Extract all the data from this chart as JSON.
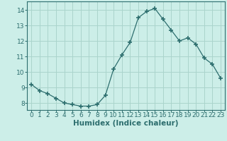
{
  "x": [
    0,
    1,
    2,
    3,
    4,
    5,
    6,
    7,
    8,
    9,
    10,
    11,
    12,
    13,
    14,
    15,
    16,
    17,
    18,
    19,
    20,
    21,
    22,
    23
  ],
  "y": [
    9.2,
    8.8,
    8.6,
    8.3,
    8.0,
    7.9,
    7.8,
    7.8,
    7.9,
    8.5,
    10.2,
    11.1,
    11.9,
    13.5,
    13.9,
    14.1,
    13.4,
    12.7,
    12.0,
    12.2,
    11.8,
    10.9,
    10.5,
    9.6
  ],
  "line_color": "#2d6e6e",
  "marker": "D",
  "marker_size": 2.5,
  "bg_color": "#cceee8",
  "grid_color": "#aad4cc",
  "xlabel": "Humidex (Indice chaleur)",
  "ylabel_ticks": [
    8,
    9,
    10,
    11,
    12,
    13,
    14
  ],
  "xlim": [
    -0.5,
    23.5
  ],
  "ylim": [
    7.55,
    14.55
  ],
  "xtick_labels": [
    "0",
    "1",
    "2",
    "3",
    "4",
    "5",
    "6",
    "7",
    "8",
    "9",
    "10",
    "11",
    "12",
    "13",
    "14",
    "15",
    "16",
    "17",
    "18",
    "19",
    "20",
    "21",
    "22",
    "23"
  ],
  "title": "",
  "tick_fontsize": 6.5,
  "xlabel_fontsize": 7.5,
  "xlabel_fontweight": "bold"
}
